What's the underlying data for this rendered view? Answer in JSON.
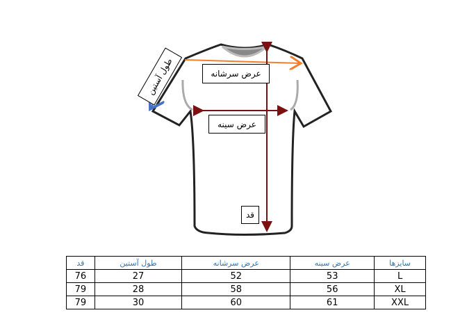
{
  "diagram": {
    "labels": {
      "shoulder_width": "عرض سرشانه",
      "chest_width": "عرض سینه",
      "length": "قد",
      "sleeve_length": "طول آستین"
    },
    "colors": {
      "shoulder_arrow": "#f08030",
      "sleeve_arrow": "#4472c4",
      "chest_arrow": "#7b1010",
      "length_arrow": "#7b1010"
    }
  },
  "table": {
    "headers": [
      "سایزها",
      "عرض سینه",
      "عرض سرشانه",
      "طول آستین",
      "قد"
    ],
    "rows": [
      [
        "L",
        "53",
        "52",
        "27",
        "76"
      ],
      [
        "XL",
        "56",
        "58",
        "28",
        "79"
      ],
      [
        "XXL",
        "61",
        "60",
        "30",
        "79"
      ]
    ],
    "header_color": "#2e75b6"
  }
}
